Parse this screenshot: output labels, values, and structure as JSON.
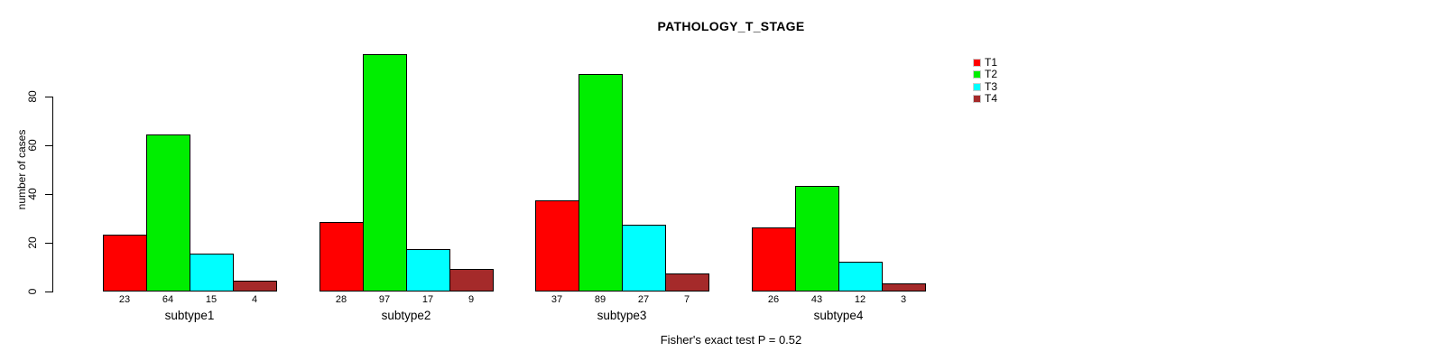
{
  "title": "PATHOLOGY_T_STAGE",
  "ylabel": "number of cases",
  "footer": "Fisher's exact test P = 0.52",
  "legend": {
    "items": [
      {
        "label": "T1",
        "color": "#ff0000"
      },
      {
        "label": "T2",
        "color": "#00ee00"
      },
      {
        "label": "T3",
        "color": "#00ffff"
      },
      {
        "label": "T4",
        "color": "#a52a2a"
      }
    ]
  },
  "chart_data": {
    "type": "bar",
    "title": "PATHOLOGY_T_STAGE",
    "xlabel": "",
    "ylabel": "number of cases",
    "categories": [
      "subtype1",
      "subtype2",
      "subtype3",
      "subtype4"
    ],
    "series": [
      {
        "name": "T1",
        "color": "#ff0000",
        "values": [
          23,
          28,
          37,
          26
        ]
      },
      {
        "name": "T2",
        "color": "#00ee00",
        "values": [
          64,
          97,
          89,
          43
        ]
      },
      {
        "name": "T3",
        "color": "#00ffff",
        "values": [
          15,
          17,
          27,
          12
        ]
      },
      {
        "name": "T4",
        "color": "#a52a2a",
        "values": [
          4,
          9,
          7,
          3
        ]
      }
    ],
    "bar_value_labels": true,
    "yticks": [
      0,
      20,
      40,
      60,
      80
    ],
    "ylim": [
      0,
      100
    ],
    "grid": false,
    "legend_position": "top-right",
    "annotation": "Fisher's exact test P = 0.52"
  }
}
